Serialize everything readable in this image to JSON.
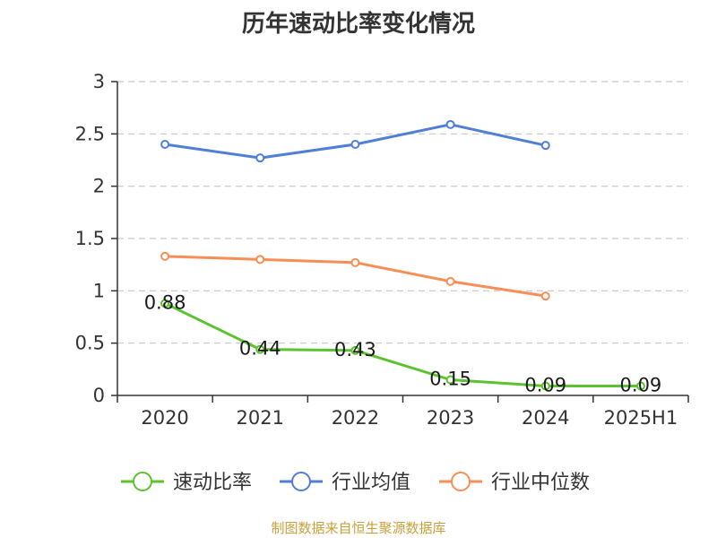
{
  "chart_data": {
    "type": "line",
    "title": "历年速动比率变化情况",
    "xlabel": "",
    "ylabel": "",
    "categories": [
      "2020",
      "2021",
      "2022",
      "2023",
      "2024",
      "2025H1"
    ],
    "ylim": [
      0,
      3
    ],
    "yticks": [
      "0",
      "0.5",
      "1",
      "1.5",
      "2",
      "2.5",
      "3"
    ],
    "grid": true,
    "legend_position": "bottom",
    "series": [
      {
        "name": "速动比率",
        "color": "#5cc22f",
        "values": [
          0.88,
          0.44,
          0.43,
          0.15,
          0.09,
          0.09
        ],
        "labels": [
          "0.88",
          "0.44",
          "0.43",
          "0.15",
          "0.09",
          "0.09"
        ]
      },
      {
        "name": "行业均值",
        "color": "#4f7fd6",
        "values": [
          2.4,
          2.27,
          2.4,
          2.59,
          2.39,
          null
        ]
      },
      {
        "name": "行业中位数",
        "color": "#f78e56",
        "values": [
          1.33,
          1.3,
          1.27,
          1.09,
          0.95,
          null
        ]
      }
    ]
  },
  "footer": {
    "source": "制图数据来自恒生聚源数据库"
  }
}
